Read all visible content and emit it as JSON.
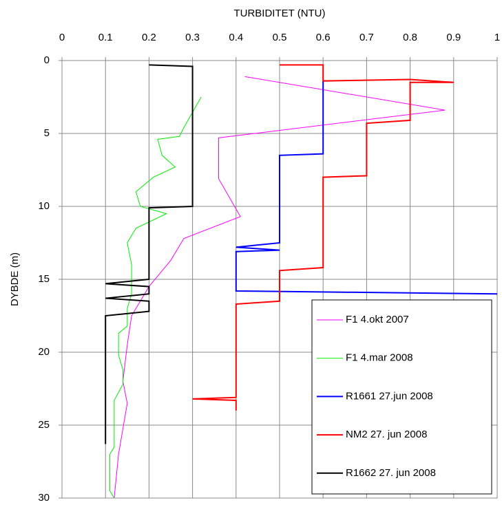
{
  "chart_data": {
    "type": "line",
    "xlabel": "TURBIDITET (NTU)",
    "ylabel": "DYBDE (m)",
    "xlim": [
      0,
      1
    ],
    "xticks": [
      0,
      0.1,
      0.2,
      0.3,
      0.4,
      0.5,
      0.6,
      0.7,
      0.8,
      0.9,
      1
    ],
    "ylim": [
      30,
      0
    ],
    "yticks": [
      0,
      5,
      10,
      15,
      20,
      25,
      30
    ],
    "x_axis_position": "top",
    "grid": true,
    "legend": "lower right",
    "series": [
      {
        "name": "F1 4.okt 2007",
        "color": "#ff00ff",
        "width": 1,
        "x": [
          0.42,
          0.88,
          0.36,
          0.36,
          0.41,
          0.28,
          0.25,
          0.2,
          0.16,
          0.15,
          0.14,
          0.15,
          0.13,
          0.12
        ],
        "y": [
          1.1,
          3.4,
          5.3,
          8.1,
          10.7,
          12.2,
          13.7,
          15.5,
          17.5,
          19.5,
          22,
          23.5,
          27,
          30
        ]
      },
      {
        "name": "F1 4.mar 2008",
        "color": "#00ee00",
        "width": 1,
        "x": [
          0.32,
          0.28,
          0.27,
          0.22,
          0.23,
          0.26,
          0.21,
          0.17,
          0.18,
          0.24,
          0.17,
          0.15,
          0.16,
          0.16,
          0.15,
          0.15,
          0.13,
          0.13,
          0.14,
          0.14,
          0.12,
          0.12,
          0.11,
          0.11,
          0.12
        ],
        "y": [
          2.5,
          4.6,
          5.2,
          5.4,
          6.5,
          7.3,
          8,
          9,
          10,
          10.5,
          11.5,
          12.5,
          14,
          16,
          17,
          18.2,
          18.7,
          20.2,
          21.2,
          22.2,
          23.3,
          26.5,
          27,
          29.5,
          30
        ]
      },
      {
        "name": "R1661 27.jun 2008",
        "color": "#0000ff",
        "width": 2,
        "x": [
          0.6,
          0.6,
          0.5,
          0.5,
          0.4,
          0.5,
          0.4,
          0.4,
          1
        ],
        "y": [
          1.4,
          6.4,
          6.5,
          12.5,
          12.8,
          13,
          13.1,
          15.8,
          16
        ]
      },
      {
        "name": "NM2 27. jun 2008",
        "color": "#ff0000",
        "width": 2,
        "x": [
          0.5,
          0.6,
          0.6,
          0.8,
          0.9,
          0.8,
          0.8,
          0.7,
          0.7,
          0.6,
          0.6,
          0.5,
          0.5,
          0.4,
          0.4,
          0.3,
          0.4,
          0.4
        ],
        "y": [
          0.3,
          0.3,
          1.4,
          1.3,
          1.5,
          1.5,
          4.1,
          4.3,
          7.9,
          8,
          14.2,
          14.4,
          16.5,
          16.7,
          23.1,
          23.2,
          23.3,
          24
        ]
      },
      {
        "name": "R1662 27. jun 2008",
        "color": "#000000",
        "width": 2,
        "x": [
          0.2,
          0.3,
          0.3,
          0.2,
          0.2,
          0.1,
          0.2,
          0.2,
          0.1,
          0.2,
          0.2,
          0.1,
          0.1
        ],
        "y": [
          0.3,
          0.4,
          10,
          10.1,
          15,
          15.3,
          15.5,
          16,
          16.3,
          16.5,
          17.2,
          17.5,
          26.3
        ]
      }
    ]
  }
}
